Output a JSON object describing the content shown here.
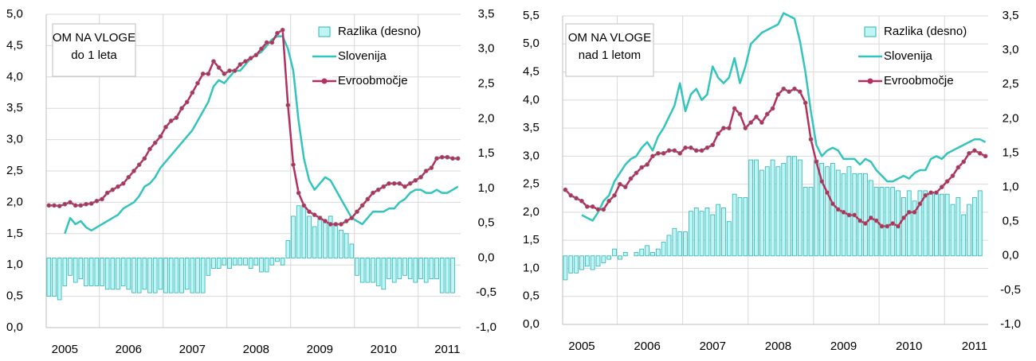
{
  "chart_data": [
    {
      "type": "combo",
      "annotation": [
        "OM NA VLOGE",
        "do 1 leta"
      ],
      "categories": [
        null,
        null,
        null,
        "2005",
        null,
        null,
        null,
        null,
        null,
        null,
        null,
        null,
        null,
        null,
        null,
        "2006",
        null,
        null,
        null,
        null,
        null,
        null,
        null,
        null,
        null,
        null,
        null,
        "2007",
        null,
        null,
        null,
        null,
        null,
        null,
        null,
        null,
        null,
        null,
        null,
        "2008",
        null,
        null,
        null,
        null,
        null,
        null,
        null,
        null,
        null,
        null,
        null,
        "2009",
        null,
        null,
        null,
        null,
        null,
        null,
        null,
        null,
        null,
        null,
        null,
        "2010",
        null,
        null,
        null,
        null,
        null,
        null,
        null,
        null,
        null,
        null,
        null,
        "2011",
        null,
        null
      ],
      "ylim": [
        0,
        5
      ],
      "y2lim": [
        -1,
        3.5
      ],
      "grid": true,
      "legend": "top-right",
      "yticks": [
        {
          "value": 0,
          "label": "0,0"
        },
        {
          "value": 0.5,
          "label": "0,5"
        },
        {
          "value": 1,
          "label": "1,0"
        },
        {
          "value": 1.5,
          "label": "1,5"
        },
        {
          "value": 2,
          "label": "2,0"
        },
        {
          "value": 2.5,
          "label": "2,5"
        },
        {
          "value": 3,
          "label": "3,0"
        },
        {
          "value": 3.5,
          "label": "3,5"
        },
        {
          "value": 4,
          "label": "4,0"
        },
        {
          "value": 4.5,
          "label": "4,5"
        },
        {
          "value": 5,
          "label": "5,0"
        }
      ],
      "y2ticks": [
        {
          "value": -1,
          "label": "-1,0"
        },
        {
          "value": -0.5,
          "label": "-0,5"
        },
        {
          "value": 0,
          "label": "0,0"
        },
        {
          "value": 0.5,
          "label": "0,5"
        },
        {
          "value": 1,
          "label": "1,0"
        },
        {
          "value": 1.5,
          "label": "1,5"
        },
        {
          "value": 2,
          "label": "2,0"
        },
        {
          "value": 2.5,
          "label": "2,5"
        },
        {
          "value": 3,
          "label": "3,0"
        },
        {
          "value": 3.5,
          "label": "3,5"
        }
      ],
      "series": [
        {
          "name": "Razlika (desno)",
          "type": "bar",
          "axis": "y2",
          "color": "#bff5f5",
          "edge": "#2bb3b3",
          "values": [
            -0.55,
            -0.55,
            -0.6,
            -0.4,
            -0.25,
            -0.35,
            -0.3,
            -0.4,
            -0.4,
            -0.4,
            -0.4,
            -0.45,
            -0.45,
            -0.45,
            -0.4,
            -0.45,
            -0.5,
            -0.5,
            -0.45,
            -0.5,
            -0.5,
            -0.45,
            -0.5,
            -0.5,
            -0.5,
            -0.5,
            -0.45,
            -0.5,
            -0.5,
            -0.5,
            -0.25,
            -0.15,
            -0.15,
            -0.1,
            -0.15,
            -0.1,
            -0.1,
            -0.1,
            -0.15,
            -0.1,
            -0.2,
            -0.2,
            -0.1,
            -0.05,
            -0.1,
            0.25,
            0.6,
            0.75,
            0.75,
            0.6,
            0.45,
            0.6,
            0.55,
            0.6,
            0.5,
            0.4,
            0.35,
            0.2,
            -0.25,
            -0.35,
            -0.35,
            -0.35,
            -0.4,
            -0.45,
            -0.3,
            -0.35,
            -0.3,
            -0.25,
            -0.3,
            -0.35,
            -0.3,
            -0.35,
            -0.3,
            -0.3,
            -0.5,
            -0.5,
            -0.5,
            null
          ]
        },
        {
          "name": "Slovenija",
          "type": "line",
          "color": "#33c4be",
          "values": [
            null,
            null,
            null,
            1.5,
            1.75,
            1.65,
            1.7,
            1.6,
            1.55,
            1.6,
            1.65,
            1.7,
            1.75,
            1.8,
            1.9,
            1.95,
            2.0,
            2.1,
            2.25,
            2.3,
            2.4,
            2.55,
            2.65,
            2.75,
            2.85,
            2.95,
            3.05,
            3.15,
            3.3,
            3.45,
            3.6,
            3.85,
            3.95,
            3.9,
            4.0,
            4.1,
            4.1,
            4.2,
            4.3,
            4.35,
            4.4,
            4.5,
            4.6,
            4.65,
            4.65,
            4.45,
            4.1,
            3.3,
            2.7,
            2.35,
            2.2,
            2.3,
            2.4,
            2.35,
            2.2,
            2.05,
            1.9,
            1.75,
            1.7,
            1.65,
            1.75,
            1.85,
            1.85,
            1.85,
            1.9,
            1.9,
            2.0,
            2.05,
            2.15,
            2.2,
            2.2,
            2.15,
            2.15,
            2.2,
            2.15,
            2.15,
            2.2,
            2.25
          ]
        },
        {
          "name": "Evroobmočje",
          "type": "line",
          "marker": true,
          "color": "#b3305c",
          "values": [
            1.95,
            1.95,
            1.94,
            1.97,
            2.0,
            1.95,
            1.95,
            1.97,
            1.98,
            2.02,
            2.05,
            2.15,
            2.2,
            2.25,
            2.3,
            2.4,
            2.5,
            2.6,
            2.7,
            2.85,
            2.95,
            3.05,
            3.2,
            3.3,
            3.35,
            3.5,
            3.6,
            3.75,
            3.9,
            4.05,
            4.05,
            4.25,
            4.15,
            4.05,
            4.1,
            4.1,
            4.2,
            4.25,
            4.3,
            4.35,
            4.45,
            4.55,
            4.55,
            4.7,
            4.75,
            3.55,
            2.6,
            2.15,
            1.95,
            1.85,
            1.8,
            1.75,
            1.7,
            1.65,
            1.65,
            1.65,
            1.7,
            1.75,
            1.85,
            1.95,
            2.05,
            2.15,
            2.2,
            2.25,
            2.3,
            2.3,
            2.3,
            2.25,
            2.3,
            2.35,
            2.4,
            2.5,
            2.55,
            2.7,
            2.72,
            2.72,
            2.7,
            2.7
          ]
        }
      ]
    },
    {
      "type": "combo",
      "annotation": [
        "OM NA VLOGE",
        "nad 1 letom"
      ],
      "categories": [
        null,
        null,
        null,
        "2005",
        null,
        null,
        null,
        null,
        null,
        null,
        null,
        null,
        null,
        null,
        null,
        "2006",
        null,
        null,
        null,
        null,
        null,
        null,
        null,
        null,
        null,
        null,
        null,
        "2007",
        null,
        null,
        null,
        null,
        null,
        null,
        null,
        null,
        null,
        null,
        null,
        "2008",
        null,
        null,
        null,
        null,
        null,
        null,
        null,
        null,
        null,
        null,
        null,
        "2009",
        null,
        null,
        null,
        null,
        null,
        null,
        null,
        null,
        null,
        null,
        null,
        "2010",
        null,
        null,
        null,
        null,
        null,
        null,
        null,
        null,
        null,
        null,
        null,
        "2011",
        null,
        null
      ],
      "ylim": [
        0,
        5.5
      ],
      "y2lim": [
        -1,
        3.5
      ],
      "grid": true,
      "legend": "top-right",
      "yticks": [
        {
          "value": 0,
          "label": "0,0"
        },
        {
          "value": 0.5,
          "label": "0,5"
        },
        {
          "value": 1,
          "label": "1,0"
        },
        {
          "value": 1.5,
          "label": "1,5"
        },
        {
          "value": 2,
          "label": "2,0"
        },
        {
          "value": 2.5,
          "label": "2,5"
        },
        {
          "value": 3,
          "label": "3,0"
        },
        {
          "value": 3.5,
          "label": "3,5"
        },
        {
          "value": 4,
          "label": "4,0"
        },
        {
          "value": 4.5,
          "label": "4,5"
        },
        {
          "value": 5,
          "label": "5,0"
        },
        {
          "value": 5.5,
          "label": "5,5"
        }
      ],
      "y2ticks": [
        {
          "value": -1,
          "label": "-1,0"
        },
        {
          "value": -0.5,
          "label": "-0,5"
        },
        {
          "value": 0,
          "label": "0,0"
        },
        {
          "value": 0.5,
          "label": "0,5"
        },
        {
          "value": 1,
          "label": "1,0"
        },
        {
          "value": 1.5,
          "label": "1,5"
        },
        {
          "value": 2,
          "label": "2,0"
        },
        {
          "value": 2.5,
          "label": "2,5"
        },
        {
          "value": 3,
          "label": "3,0"
        },
        {
          "value": 3.5,
          "label": "3,5"
        }
      ],
      "series": [
        {
          "name": "Razlika (desno)",
          "type": "bar",
          "axis": "y2",
          "color": "#bff5f5",
          "edge": "#2bb3b3",
          "values": [
            -0.35,
            -0.25,
            -0.25,
            -0.2,
            -0.15,
            -0.2,
            -0.15,
            -0.1,
            -0.05,
            0.1,
            -0.05,
            0.05,
            0.0,
            0.05,
            0.1,
            0.15,
            0.05,
            0.1,
            0.2,
            0.3,
            0.4,
            0.35,
            0.35,
            0.65,
            0.7,
            0.65,
            0.7,
            0.6,
            0.75,
            0.7,
            0.5,
            0.9,
            0.85,
            0.85,
            1.4,
            1.4,
            1.25,
            1.3,
            1.4,
            1.3,
            1.35,
            1.45,
            1.45,
            1.4,
            1.0,
            1.0,
            1.4,
            1.35,
            1.3,
            1.35,
            1.25,
            1.2,
            1.3,
            1.2,
            1.2,
            1.2,
            1.1,
            1.0,
            1.0,
            1.0,
            1.0,
            0.95,
            0.85,
            0.95,
            0.8,
            0.95,
            0.95,
            0.9,
            0.9,
            0.9,
            0.9,
            0.75,
            0.85,
            0.6,
            0.75,
            0.85,
            0.95,
            null
          ]
        },
        {
          "name": "Slovenija",
          "type": "line",
          "color": "#33c4be",
          "values": [
            null,
            null,
            null,
            1.95,
            1.9,
            1.85,
            2.0,
            2.2,
            2.3,
            2.55,
            2.7,
            2.85,
            2.95,
            3.0,
            3.15,
            3.25,
            3.1,
            3.35,
            3.5,
            3.7,
            3.9,
            4.3,
            3.8,
            4.1,
            4.2,
            4.0,
            4.1,
            4.6,
            4.4,
            4.3,
            4.4,
            4.75,
            4.3,
            4.6,
            5.0,
            5.1,
            5.2,
            5.25,
            5.3,
            5.35,
            5.55,
            5.5,
            5.45,
            5.05,
            4.5,
            3.8,
            3.2,
            3.0,
            3.1,
            3.15,
            3.1,
            2.95,
            2.95,
            2.95,
            2.85,
            2.95,
            2.9,
            2.75,
            2.65,
            2.55,
            2.55,
            2.6,
            2.65,
            2.6,
            2.7,
            2.75,
            2.75,
            2.95,
            3.0,
            2.95,
            3.05,
            3.1,
            3.15,
            3.2,
            3.25,
            3.3,
            3.3,
            3.25
          ]
        },
        {
          "name": "Evroobmočje",
          "type": "line",
          "marker": true,
          "color": "#b3305c",
          "values": [
            2.4,
            2.3,
            2.25,
            2.2,
            2.1,
            2.1,
            2.05,
            2.05,
            2.2,
            2.3,
            2.5,
            2.45,
            2.6,
            2.7,
            2.8,
            2.85,
            3.0,
            3.05,
            3.05,
            3.1,
            3.1,
            3.05,
            3.15,
            3.15,
            3.1,
            3.1,
            3.15,
            3.2,
            3.4,
            3.5,
            3.5,
            3.85,
            3.75,
            3.5,
            3.6,
            3.7,
            3.6,
            3.75,
            3.85,
            4.1,
            4.2,
            4.15,
            4.2,
            4.15,
            3.95,
            3.3,
            2.9,
            2.55,
            2.35,
            2.15,
            2.05,
            2.0,
            1.95,
            1.95,
            1.85,
            1.8,
            1.9,
            1.85,
            1.75,
            1.75,
            1.8,
            1.75,
            1.9,
            2.0,
            2.0,
            2.15,
            2.3,
            2.35,
            2.35,
            2.45,
            2.55,
            2.65,
            2.8,
            2.9,
            3.05,
            3.1,
            3.05,
            3.0
          ]
        }
      ]
    }
  ]
}
